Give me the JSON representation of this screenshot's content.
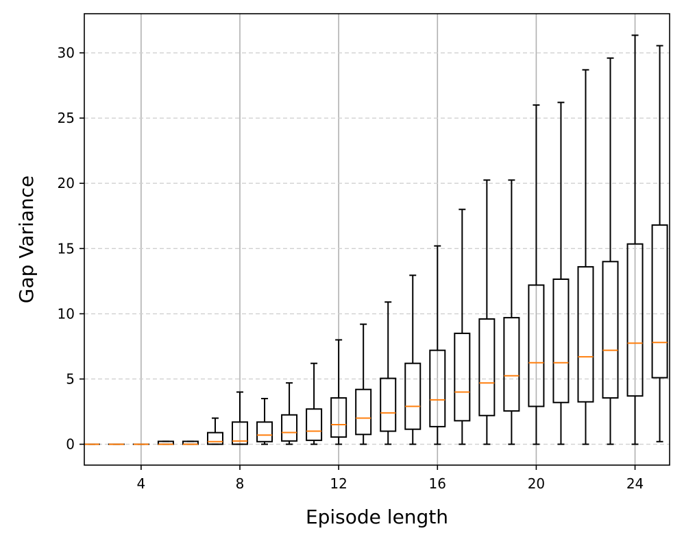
{
  "chart_data": {
    "type": "box",
    "xlabel": "Episode length",
    "ylabel": "Gap Variance",
    "xlim": [
      1.7,
      25.4
    ],
    "ylim": [
      -1.6,
      33
    ],
    "xticks": [
      4,
      8,
      12,
      16,
      20,
      24
    ],
    "yticks": [
      0,
      5,
      10,
      15,
      20,
      25,
      30
    ],
    "grid": {
      "x": "solid",
      "y": "dashed"
    },
    "colors": {
      "box": "#000000",
      "median": "#ff7f0e",
      "grid": "#b0b0b0"
    },
    "boxes": [
      {
        "x": 2,
        "whislo": 0,
        "q1": 0,
        "med": 0,
        "q3": 0,
        "whishi": 0
      },
      {
        "x": 3,
        "whislo": 0,
        "q1": 0,
        "med": 0,
        "q3": 0,
        "whishi": 0
      },
      {
        "x": 4,
        "whislo": 0,
        "q1": 0,
        "med": 0,
        "q3": 0,
        "whishi": 0
      },
      {
        "x": 5,
        "whislo": 0,
        "q1": 0,
        "med": 0,
        "q3": 0.22,
        "whishi": 0.22
      },
      {
        "x": 6,
        "whislo": 0,
        "q1": 0,
        "med": 0,
        "q3": 0.22,
        "whishi": 0.22
      },
      {
        "x": 7,
        "whislo": 0,
        "q1": 0,
        "med": 0.2,
        "q3": 0.89,
        "whishi": 2.0
      },
      {
        "x": 8,
        "whislo": 0,
        "q1": 0,
        "med": 0.25,
        "q3": 1.7,
        "whishi": 4.0
      },
      {
        "x": 9,
        "whislo": 0,
        "q1": 0.2,
        "med": 0.7,
        "q3": 1.7,
        "whishi": 3.5
      },
      {
        "x": 10,
        "whislo": 0,
        "q1": 0.25,
        "med": 0.9,
        "q3": 2.25,
        "whishi": 4.7
      },
      {
        "x": 11,
        "whislo": 0,
        "q1": 0.3,
        "med": 1.0,
        "q3": 2.7,
        "whishi": 6.2
      },
      {
        "x": 12,
        "whislo": 0,
        "q1": 0.55,
        "med": 1.5,
        "q3": 3.55,
        "whishi": 8.0
      },
      {
        "x": 13,
        "whislo": 0,
        "q1": 0.75,
        "med": 2.0,
        "q3": 4.2,
        "whishi": 9.2
      },
      {
        "x": 14,
        "whislo": 0,
        "q1": 1.0,
        "med": 2.4,
        "q3": 5.05,
        "whishi": 10.9
      },
      {
        "x": 15,
        "whislo": 0,
        "q1": 1.15,
        "med": 2.9,
        "q3": 6.2,
        "whishi": 12.95
      },
      {
        "x": 16,
        "whislo": 0,
        "q1": 1.35,
        "med": 3.4,
        "q3": 7.2,
        "whishi": 15.2
      },
      {
        "x": 17,
        "whislo": 0,
        "q1": 1.8,
        "med": 4.0,
        "q3": 8.5,
        "whishi": 18.0
      },
      {
        "x": 18,
        "whislo": 0,
        "q1": 2.2,
        "med": 4.7,
        "q3": 9.6,
        "whishi": 20.25
      },
      {
        "x": 19,
        "whislo": 0,
        "q1": 2.55,
        "med": 5.25,
        "q3": 9.7,
        "whishi": 20.25
      },
      {
        "x": 20,
        "whislo": 0,
        "q1": 2.9,
        "med": 6.25,
        "q3": 12.2,
        "whishi": 26.0
      },
      {
        "x": 21,
        "whislo": 0,
        "q1": 3.2,
        "med": 6.25,
        "q3": 12.65,
        "whishi": 26.2
      },
      {
        "x": 22,
        "whislo": 0,
        "q1": 3.25,
        "med": 6.7,
        "q3": 13.6,
        "whishi": 28.7
      },
      {
        "x": 23,
        "whislo": 0,
        "q1": 3.55,
        "med": 7.2,
        "q3": 14.0,
        "whishi": 29.6
      },
      {
        "x": 24,
        "whislo": 0,
        "q1": 3.7,
        "med": 7.75,
        "q3": 15.35,
        "whishi": 31.35
      },
      {
        "x": 25,
        "whislo": 0.2,
        "q1": 5.1,
        "med": 7.8,
        "q3": 16.8,
        "whishi": 30.55
      }
    ]
  }
}
